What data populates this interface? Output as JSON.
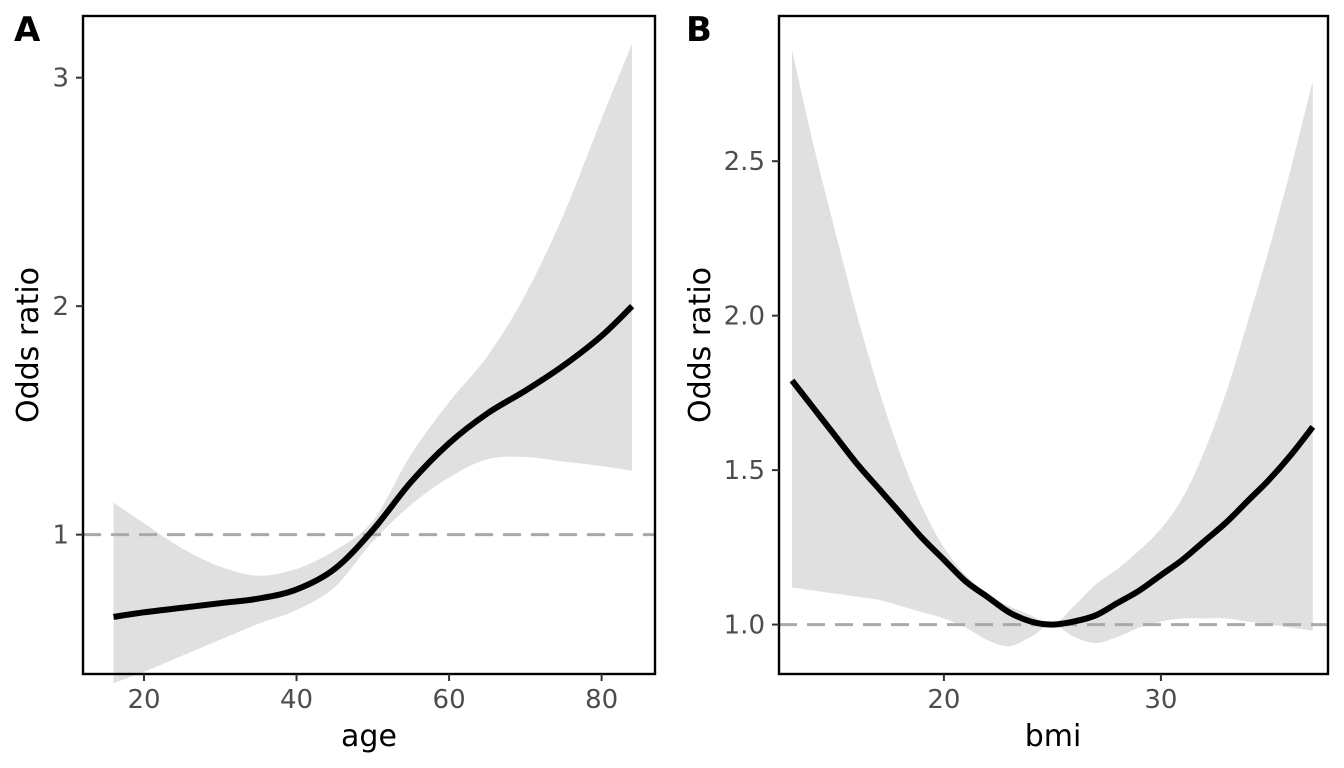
{
  "colors": {
    "band": "#e0e0e0",
    "curve": "#000000",
    "reference": "#a9a9a9"
  },
  "chart_data": [
    {
      "type": "line",
      "panel_label": "A",
      "xlabel": "age",
      "ylabel": "Odds ratio",
      "xlim": [
        12,
        87
      ],
      "ylim": [
        0.39,
        3.27
      ],
      "xticks": [
        20,
        40,
        60,
        80
      ],
      "xtick_labels": [
        "20",
        "40",
        "60",
        "80"
      ],
      "yticks": [
        1,
        2,
        3
      ],
      "ytick_labels": [
        "1",
        "2",
        "3"
      ],
      "reference_line": 1,
      "grid": false,
      "series": [
        {
          "x": [
            16,
            20,
            25,
            30,
            35,
            40,
            45,
            50,
            55,
            60,
            65,
            70,
            75,
            80,
            84
          ],
          "y": [
            0.64,
            0.66,
            0.68,
            0.7,
            0.72,
            0.76,
            0.85,
            1.02,
            1.23,
            1.4,
            1.53,
            1.63,
            1.74,
            1.87,
            2.0
          ],
          "lower": [
            0.35,
            0.4,
            0.47,
            0.54,
            0.61,
            0.67,
            0.77,
            0.97,
            1.13,
            1.25,
            1.33,
            1.34,
            1.32,
            1.3,
            1.28
          ],
          "upper": [
            1.14,
            1.05,
            0.94,
            0.86,
            0.82,
            0.85,
            0.93,
            1.06,
            1.35,
            1.58,
            1.78,
            2.05,
            2.4,
            2.82,
            3.15
          ]
        }
      ]
    },
    {
      "type": "line",
      "panel_label": "B",
      "xlabel": "bmi",
      "ylabel": "Odds ratio",
      "xlim": [
        12.4,
        37.7
      ],
      "ylim": [
        0.84,
        2.97
      ],
      "xticks": [
        20,
        30
      ],
      "xtick_labels": [
        "20",
        "30"
      ],
      "yticks": [
        1.0,
        1.5,
        2.0,
        2.5
      ],
      "ytick_labels": [
        "1.0",
        "1.5",
        "2.0",
        "2.5"
      ],
      "reference_line": 1,
      "grid": false,
      "series": [
        {
          "x": [
            13,
            14,
            15,
            16,
            17,
            18,
            19,
            20,
            21,
            22,
            23,
            24,
            25,
            26,
            27,
            28,
            29,
            30,
            31,
            32,
            33,
            34,
            35,
            36,
            37
          ],
          "y": [
            1.79,
            1.7,
            1.61,
            1.52,
            1.44,
            1.36,
            1.28,
            1.21,
            1.14,
            1.09,
            1.04,
            1.01,
            1.0,
            1.01,
            1.03,
            1.07,
            1.11,
            1.16,
            1.21,
            1.27,
            1.33,
            1.4,
            1.47,
            1.55,
            1.64
          ],
          "lower": [
            1.12,
            1.11,
            1.1,
            1.09,
            1.08,
            1.06,
            1.04,
            1.02,
            0.99,
            0.95,
            0.93,
            0.96,
            1.0,
            0.96,
            0.94,
            0.96,
            0.99,
            1.01,
            1.02,
            1.02,
            1.02,
            1.01,
            1.0,
            0.99,
            0.98
          ],
          "upper": [
            2.86,
            2.55,
            2.27,
            2.0,
            1.76,
            1.55,
            1.38,
            1.25,
            1.16,
            1.1,
            1.06,
            1.03,
            1.0,
            1.06,
            1.13,
            1.18,
            1.24,
            1.31,
            1.41,
            1.56,
            1.75,
            1.98,
            2.22,
            2.48,
            2.76
          ]
        }
      ]
    }
  ]
}
